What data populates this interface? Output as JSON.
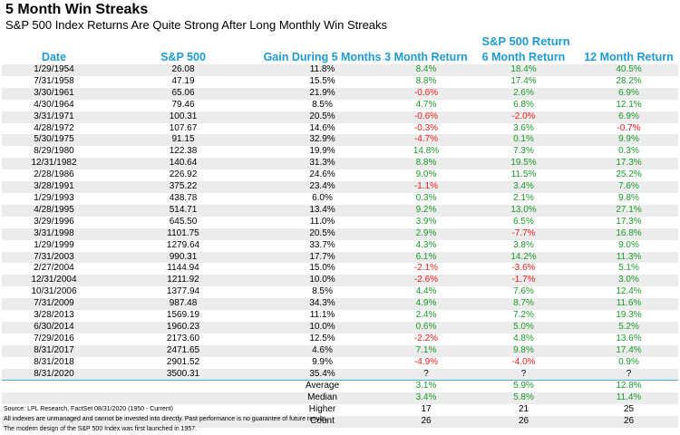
{
  "title": "5 Month Win Streaks",
  "subtitle": "S&P 500 Index Returns Are Quite Strong After Long Monthly Win Streaks",
  "group_header": "S&P 500 Return",
  "columns": [
    "Date",
    "S&P 500",
    "Gain During 5 Months",
    "3 Month Return",
    "6 Month Return",
    "12 Month Return"
  ],
  "colors": {
    "header": "#1e9bd7",
    "positive": "#1a9a2a",
    "negative": "#ee1c1c",
    "stripe": "#ececec"
  },
  "rows": [
    [
      "1/29/1954",
      "26.08",
      "11.8%",
      "8.4%",
      "18.4%",
      "40.5%"
    ],
    [
      "7/31/1958",
      "47.19",
      "15.5%",
      "8.8%",
      "17.4%",
      "28.2%"
    ],
    [
      "3/30/1961",
      "65.06",
      "21.9%",
      "-0.6%",
      "2.6%",
      "6.9%"
    ],
    [
      "4/30/1964",
      "79.46",
      "8.5%",
      "4.7%",
      "6.8%",
      "12.1%"
    ],
    [
      "3/31/1971",
      "100.31",
      "20.5%",
      "-0.6%",
      "-2.0%",
      "6.9%"
    ],
    [
      "4/28/1972",
      "107.67",
      "14.6%",
      "-0.3%",
      "3.6%",
      "-0.7%"
    ],
    [
      "5/30/1975",
      "91.15",
      "32.9%",
      "-4.7%",
      "0.1%",
      "9.9%"
    ],
    [
      "8/29/1980",
      "122.38",
      "19.9%",
      "14.8%",
      "7.3%",
      "0.3%"
    ],
    [
      "12/31/1982",
      "140.64",
      "31.3%",
      "8.8%",
      "19.5%",
      "17.3%"
    ],
    [
      "2/28/1986",
      "226.92",
      "24.6%",
      "9.0%",
      "11.5%",
      "25.2%"
    ],
    [
      "3/28/1991",
      "375.22",
      "23.4%",
      "-1.1%",
      "3.4%",
      "7.6%"
    ],
    [
      "1/29/1993",
      "438.78",
      "6.0%",
      "0.3%",
      "2.1%",
      "9.8%"
    ],
    [
      "4/28/1995",
      "514.71",
      "13.4%",
      "9.2%",
      "13.0%",
      "27.1%"
    ],
    [
      "3/29/1996",
      "645.50",
      "11.0%",
      "3.9%",
      "6.5%",
      "17.3%"
    ],
    [
      "3/31/1998",
      "1101.75",
      "20.5%",
      "2.9%",
      "-7.7%",
      "16.8%"
    ],
    [
      "1/29/1999",
      "1279.64",
      "33.7%",
      "4.3%",
      "3.8%",
      "9.0%"
    ],
    [
      "7/31/2003",
      "990.31",
      "17.7%",
      "6.1%",
      "14.2%",
      "11.3%"
    ],
    [
      "2/27/2004",
      "1144.94",
      "15.0%",
      "-2.1%",
      "-3.6%",
      "5.1%"
    ],
    [
      "12/31/2004",
      "1211.92",
      "10.0%",
      "-2.6%",
      "-1.7%",
      "3.0%"
    ],
    [
      "10/31/2006",
      "1377.94",
      "8.5%",
      "4.4%",
      "7.6%",
      "12.4%"
    ],
    [
      "7/31/2009",
      "987.48",
      "34.3%",
      "4.9%",
      "8.7%",
      "11.6%"
    ],
    [
      "3/28/2013",
      "1569.19",
      "11.1%",
      "2.4%",
      "7.2%",
      "19.3%"
    ],
    [
      "6/30/2014",
      "1960.23",
      "10.0%",
      "0.6%",
      "5.0%",
      "5.2%"
    ],
    [
      "7/29/2016",
      "2173.60",
      "12.5%",
      "-2.2%",
      "4.8%",
      "13.6%"
    ],
    [
      "8/31/2017",
      "2471.65",
      "4.6%",
      "7.1%",
      "9.8%",
      "17.4%"
    ],
    [
      "8/31/2018",
      "2901.52",
      "9.9%",
      "-4.9%",
      "-4.0%",
      "0.9%"
    ],
    [
      "8/31/2020",
      "3500.31",
      "35.4%",
      "?",
      "?",
      "?"
    ]
  ],
  "summary": [
    [
      "Average",
      "3.1%",
      "5.9%",
      "12.8%"
    ],
    [
      "Median",
      "3.4%",
      "5.8%",
      "11.4%"
    ],
    [
      "Higher",
      "17",
      "21",
      "25"
    ],
    [
      "Count",
      "26",
      "26",
      "26"
    ]
  ],
  "notes": [
    "Source: LPL Research, FactSet 08/31/2020 (1950 - Current)",
    "All indexes are unmanaged and cannot be invested into directly. Past performance is no guarantee of future results.",
    "The modern design of the S&P 500 Index was first launched in 1957."
  ]
}
